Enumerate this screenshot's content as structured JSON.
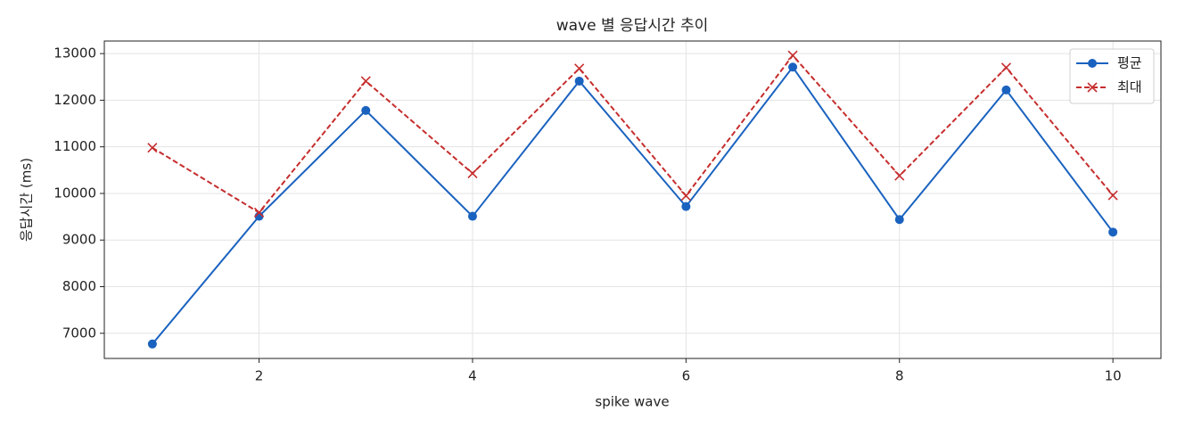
{
  "chart_data": {
    "type": "line",
    "title": "wave 별 응답시간 추이",
    "x_label": "spike wave",
    "y_label": "응답시간 (ms)",
    "x": [
      1,
      2,
      3,
      4,
      5,
      6,
      7,
      8,
      9,
      10
    ],
    "series": [
      {
        "name": "평균",
        "color": "#1a62bf",
        "marker": "o",
        "dash": false,
        "values": [
          6770,
          9510,
          11780,
          9510,
          12410,
          9720,
          12710,
          9440,
          12220,
          9170
        ]
      },
      {
        "name": "최대",
        "color": "#c62d2d",
        "marker": "x",
        "dash": true,
        "values": [
          10980,
          9590,
          12410,
          10430,
          12680,
          9950,
          12960,
          10380,
          12700,
          9960
        ]
      }
    ],
    "xlim": [
      0.55,
      10.45
    ],
    "xticks": [
      2,
      4,
      6,
      8,
      10
    ],
    "ylim": [
      6460,
      13270
    ],
    "yticks": [
      7000,
      8000,
      9000,
      10000,
      11000,
      12000,
      13000
    ],
    "grid": true,
    "legend": "upper right"
  }
}
